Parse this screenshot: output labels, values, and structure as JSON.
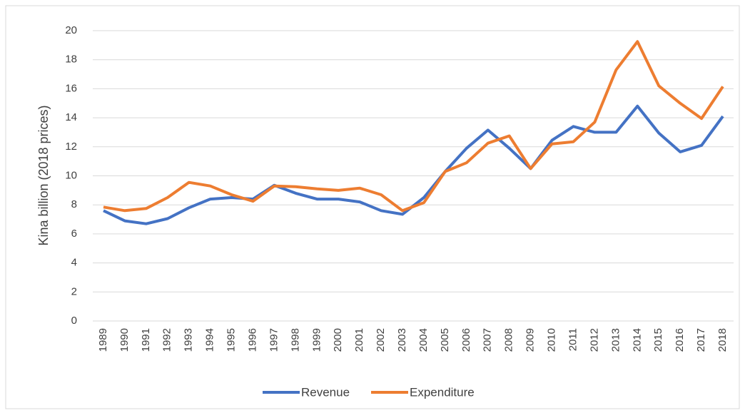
{
  "chart_data": {
    "type": "line",
    "y_label": "Kina billion (2018 prices)",
    "categories": [
      "1989",
      "1990",
      "1991",
      "1992",
      "1993",
      "1994",
      "1995",
      "1996",
      "1997",
      "1998",
      "1999",
      "2000",
      "2001",
      "2002",
      "2003",
      "2004",
      "2005",
      "2006",
      "2007",
      "2008",
      "2009",
      "2010",
      "2011",
      "2012",
      "2013",
      "2014",
      "2015",
      "2016",
      "2017",
      "2018"
    ],
    "series": [
      {
        "name": "Revenue",
        "color": "#4472c4",
        "values": [
          7.6,
          6.9,
          6.7,
          7.05,
          7.8,
          8.4,
          8.5,
          8.4,
          9.35,
          8.8,
          8.4,
          8.4,
          8.2,
          7.6,
          7.35,
          8.5,
          10.3,
          11.9,
          13.15,
          11.9,
          10.5,
          12.45,
          13.4,
          13.0,
          13.0,
          14.8,
          12.95,
          11.65,
          12.1,
          14.1
        ]
      },
      {
        "name": "Expenditure",
        "color": "#ed7d31",
        "values": [
          7.85,
          7.6,
          7.75,
          8.5,
          9.55,
          9.3,
          8.7,
          8.25,
          9.3,
          9.25,
          9.1,
          9.0,
          9.15,
          8.7,
          7.6,
          8.15,
          10.3,
          10.9,
          12.25,
          12.75,
          10.5,
          12.2,
          12.35,
          13.7,
          17.3,
          19.25,
          16.2,
          15.0,
          13.95,
          16.15
        ]
      }
    ],
    "ylim": [
      0,
      20
    ],
    "yticks": [
      0,
      2,
      4,
      6,
      8,
      10,
      12,
      14,
      16,
      18,
      20
    ],
    "grid": true,
    "legend": "bottom"
  }
}
